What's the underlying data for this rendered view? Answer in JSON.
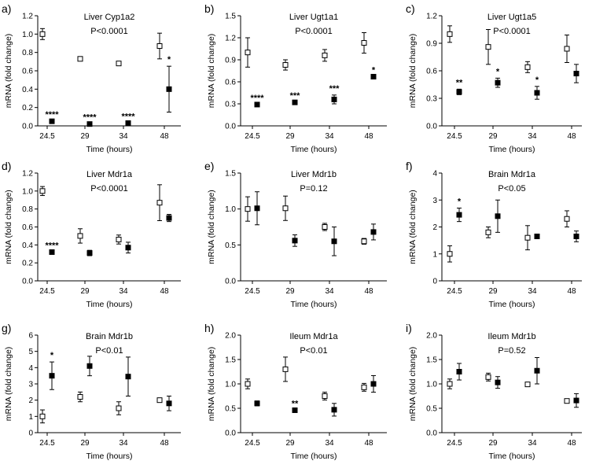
{
  "chart_data": [
    {
      "panel": "a)",
      "type": "scatter",
      "title": "Liver Cyp1a2",
      "pvalue": "P<0.0001",
      "xlabel": "Time (hours)",
      "ylabel": "mRNA (fold change)",
      "categories": [
        "24.5",
        "29",
        "34",
        "48"
      ],
      "ylim": [
        0,
        1.2
      ],
      "yticks": [
        0,
        0.2,
        0.4,
        0.6,
        0.8,
        1.0,
        1.2
      ],
      "ytick_labels": [
        "0.0",
        "0.2",
        "0.4",
        "0.6",
        "0.8",
        "1.0",
        "1.2"
      ],
      "series": [
        {
          "name": "open",
          "values": [
            1.0,
            0.73,
            0.68,
            0.87
          ],
          "errors": [
            0.06,
            0,
            0,
            0.14
          ]
        },
        {
          "name": "filled",
          "values": [
            0.05,
            0.02,
            0.03,
            0.4
          ],
          "errors": [
            0,
            0,
            0,
            0.25
          ]
        }
      ],
      "significance": [
        "****",
        "****",
        "****",
        "*"
      ]
    },
    {
      "panel": "b)",
      "type": "scatter",
      "title": "Liver Ugt1a1",
      "pvalue": "P<0.0001",
      "xlabel": "Time (hours)",
      "ylabel": "mRNA (fold change)",
      "categories": [
        "24.5",
        "29",
        "34",
        "48"
      ],
      "ylim": [
        0,
        1.5
      ],
      "yticks": [
        0,
        0.3,
        0.6,
        0.9,
        1.2,
        1.5
      ],
      "ytick_labels": [
        "0.0",
        "0.3",
        "0.6",
        "0.9",
        "1.2",
        "1.5"
      ],
      "series": [
        {
          "name": "open",
          "values": [
            1.0,
            0.83,
            0.96,
            1.13
          ],
          "errors": [
            0.2,
            0.07,
            0.08,
            0.14
          ]
        },
        {
          "name": "filled",
          "values": [
            0.29,
            0.32,
            0.36,
            0.67
          ],
          "errors": [
            0,
            0,
            0.06,
            0
          ]
        }
      ],
      "significance": [
        "****",
        "***",
        "***",
        "*"
      ]
    },
    {
      "panel": "c)",
      "type": "scatter",
      "title": "Liver Ugt1a5",
      "pvalue": "P<0.0001",
      "xlabel": "Time (hours)",
      "ylabel": "mRNA (fold change)",
      "categories": [
        "24.5",
        "29",
        "34",
        "48"
      ],
      "ylim": [
        0,
        1.2
      ],
      "yticks": [
        0,
        0.3,
        0.6,
        0.9,
        1.2
      ],
      "ytick_labels": [
        "0.0",
        "0.3",
        "0.6",
        "0.9",
        "1.2"
      ],
      "series": [
        {
          "name": "open",
          "values": [
            1.0,
            0.86,
            0.64,
            0.84
          ],
          "errors": [
            0.09,
            0.19,
            0.06,
            0.15
          ]
        },
        {
          "name": "filled",
          "values": [
            0.37,
            0.47,
            0.36,
            0.57
          ],
          "errors": [
            0.03,
            0.05,
            0.07,
            0.1
          ]
        }
      ],
      "significance": [
        "**",
        "*",
        "*",
        ""
      ]
    },
    {
      "panel": "d)",
      "type": "scatter",
      "title": "Liver Mdr1a",
      "pvalue": "P<0.0001",
      "xlabel": "Time (hours)",
      "ylabel": "mRNA (fold change)",
      "categories": [
        "24.5",
        "29",
        "34",
        "48"
      ],
      "ylim": [
        0,
        1.2
      ],
      "yticks": [
        0,
        0.2,
        0.4,
        0.6,
        0.8,
        1.0,
        1.2
      ],
      "ytick_labels": [
        "0.0",
        "0.2",
        "0.4",
        "0.6",
        "0.8",
        "1.0",
        "1.2"
      ],
      "series": [
        {
          "name": "open",
          "values": [
            1.0,
            0.5,
            0.46,
            0.87
          ],
          "errors": [
            0.05,
            0.08,
            0.05,
            0.2
          ]
        },
        {
          "name": "filled",
          "values": [
            0.32,
            0.31,
            0.37,
            0.7
          ],
          "errors": [
            0,
            0.03,
            0.06,
            0.04
          ]
        }
      ],
      "significance": [
        "****",
        "",
        "",
        ""
      ]
    },
    {
      "panel": "e)",
      "type": "scatter",
      "title": "Liver Mdr1b",
      "pvalue": "P=0.12",
      "xlabel": "Time (hours)",
      "ylabel": "mRNA (fold change)",
      "categories": [
        "24.5",
        "29",
        "34",
        "48"
      ],
      "ylim": [
        0,
        1.5
      ],
      "yticks": [
        0,
        0.5,
        1.0,
        1.5
      ],
      "ytick_labels": [
        "0.0",
        "0.5",
        "1.0",
        "1.5"
      ],
      "series": [
        {
          "name": "open",
          "values": [
            1.0,
            1.01,
            0.75,
            0.55
          ],
          "errors": [
            0.17,
            0.17,
            0.05,
            0.04
          ]
        },
        {
          "name": "filled",
          "values": [
            1.01,
            0.56,
            0.55,
            0.68
          ],
          "errors": [
            0.23,
            0.08,
            0.2,
            0.11
          ]
        }
      ],
      "significance": [
        "",
        "",
        "",
        ""
      ]
    },
    {
      "panel": "f)",
      "type": "scatter",
      "title": "Brain Mdr1a",
      "pvalue": "P<0.05",
      "xlabel": "Time (hours)",
      "ylabel": "mRNA (fold change)",
      "categories": [
        "24.5",
        "29",
        "34",
        "48"
      ],
      "ylim": [
        0,
        4
      ],
      "yticks": [
        0,
        1,
        2,
        3,
        4
      ],
      "ytick_labels": [
        "0",
        "1",
        "2",
        "3",
        "4"
      ],
      "series": [
        {
          "name": "open",
          "values": [
            1.0,
            1.8,
            1.6,
            2.3
          ],
          "errors": [
            0.3,
            0.2,
            0.45,
            0.3
          ]
        },
        {
          "name": "filled",
          "values": [
            2.45,
            2.4,
            1.65,
            1.65
          ],
          "errors": [
            0.25,
            0.6,
            0,
            0.2
          ]
        }
      ],
      "significance": [
        "*",
        "",
        "",
        ""
      ]
    },
    {
      "panel": "g)",
      "type": "scatter",
      "title": "Brain Mdr1b",
      "pvalue": "P<0.01",
      "xlabel": "Time (hours)",
      "ylabel": "mRNA (fold change)",
      "categories": [
        "24.5",
        "29",
        "34",
        "48"
      ],
      "ylim": [
        0,
        6
      ],
      "yticks": [
        0,
        1,
        2,
        3,
        4,
        5,
        6
      ],
      "ytick_labels": [
        "0",
        "1",
        "2",
        "3",
        "4",
        "5",
        "6"
      ],
      "series": [
        {
          "name": "open",
          "values": [
            1.0,
            2.2,
            1.5,
            2.0
          ],
          "errors": [
            0.4,
            0.3,
            0.4,
            0
          ]
        },
        {
          "name": "filled",
          "values": [
            3.5,
            4.1,
            3.45,
            1.8
          ],
          "errors": [
            0.85,
            0.6,
            1.2,
            0.45
          ]
        }
      ],
      "significance": [
        "*",
        "",
        "",
        ""
      ]
    },
    {
      "panel": "h)",
      "type": "scatter",
      "title": "Ileum Mdr1a",
      "pvalue": "P<0.01",
      "xlabel": "Time (hours)",
      "ylabel": "mRNA (fold change)",
      "categories": [
        "24.5",
        "29",
        "34",
        "48"
      ],
      "ylim": [
        0,
        2.0
      ],
      "yticks": [
        0,
        0.5,
        1.0,
        1.5,
        2.0
      ],
      "ytick_labels": [
        "0.0",
        "0.5",
        "1.0",
        "1.5",
        "2.0"
      ],
      "series": [
        {
          "name": "open",
          "values": [
            1.0,
            1.3,
            0.75,
            0.93
          ],
          "errors": [
            0.1,
            0.25,
            0.08,
            0.08
          ]
        },
        {
          "name": "filled",
          "values": [
            0.6,
            0.46,
            0.47,
            1.0
          ],
          "errors": [
            0.05,
            0,
            0.13,
            0.17
          ]
        }
      ],
      "significance": [
        "",
        "**",
        "",
        ""
      ]
    },
    {
      "panel": "i)",
      "type": "scatter",
      "title": "Ileum Mdr1b",
      "pvalue": "P=0.52",
      "xlabel": "Time (hours)",
      "ylabel": "mRNA (fold change)",
      "categories": [
        "24.5",
        "29",
        "34",
        "48"
      ],
      "ylim": [
        0,
        2.0
      ],
      "yticks": [
        0,
        0.5,
        1.0,
        1.5,
        2.0
      ],
      "ytick_labels": [
        "0.0",
        "0.5",
        "1.0",
        "1.5",
        "2.0"
      ],
      "series": [
        {
          "name": "open",
          "values": [
            1.0,
            1.14,
            0.99,
            0.65
          ],
          "errors": [
            0.1,
            0.08,
            0,
            0
          ]
        },
        {
          "name": "filled",
          "values": [
            1.25,
            1.03,
            1.27,
            0.66
          ],
          "errors": [
            0.17,
            0.12,
            0.27,
            0.14
          ]
        }
      ],
      "significance": [
        "",
        "",
        "",
        ""
      ]
    }
  ]
}
